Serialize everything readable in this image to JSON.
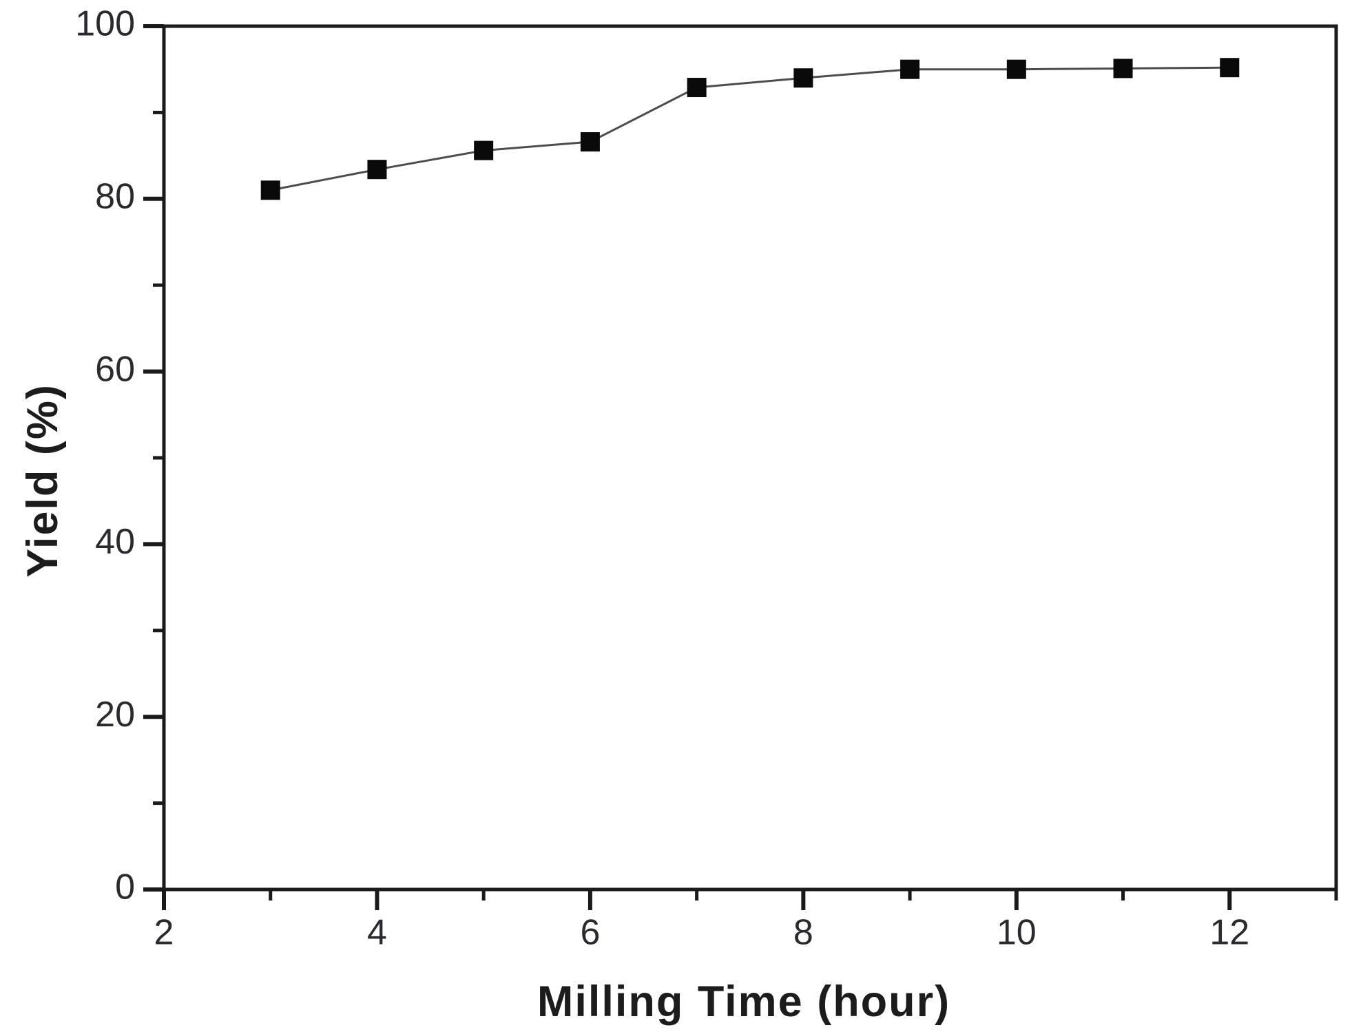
{
  "figure": {
    "background_color": "#ffffff"
  },
  "chart_data": {
    "type": "line",
    "title": "",
    "xlabel": "Milling Time (hour)",
    "ylabel": "Yield (%)",
    "x": [
      3,
      4,
      5,
      6,
      7,
      8,
      9,
      10,
      11,
      12
    ],
    "y": [
      81,
      83.4,
      85.6,
      86.6,
      92.9,
      94,
      95,
      95,
      95.1,
      95.2
    ],
    "xlim": [
      2,
      13
    ],
    "ylim": [
      0,
      100
    ],
    "x_major_ticks": [
      2,
      4,
      6,
      8,
      10,
      12
    ],
    "x_minor_ticks": [
      3,
      5,
      7,
      9,
      11
    ],
    "y_major_ticks": [
      0,
      20,
      40,
      60,
      80,
      100
    ],
    "y_minor_ticks": [
      10,
      30,
      50,
      70,
      90
    ],
    "x_tick_labels": [
      "2",
      "4",
      "6",
      "8",
      "10",
      "12"
    ],
    "y_tick_labels": [
      "0",
      "20",
      "40",
      "60",
      "80",
      "100"
    ],
    "grid": false,
    "legend": false,
    "marker": "square",
    "marker_color": "#0a0a0a",
    "line_color": "#4d4d4d",
    "axis_color": "#1a1a1a",
    "tick_label_color": "#2b2b2f"
  }
}
